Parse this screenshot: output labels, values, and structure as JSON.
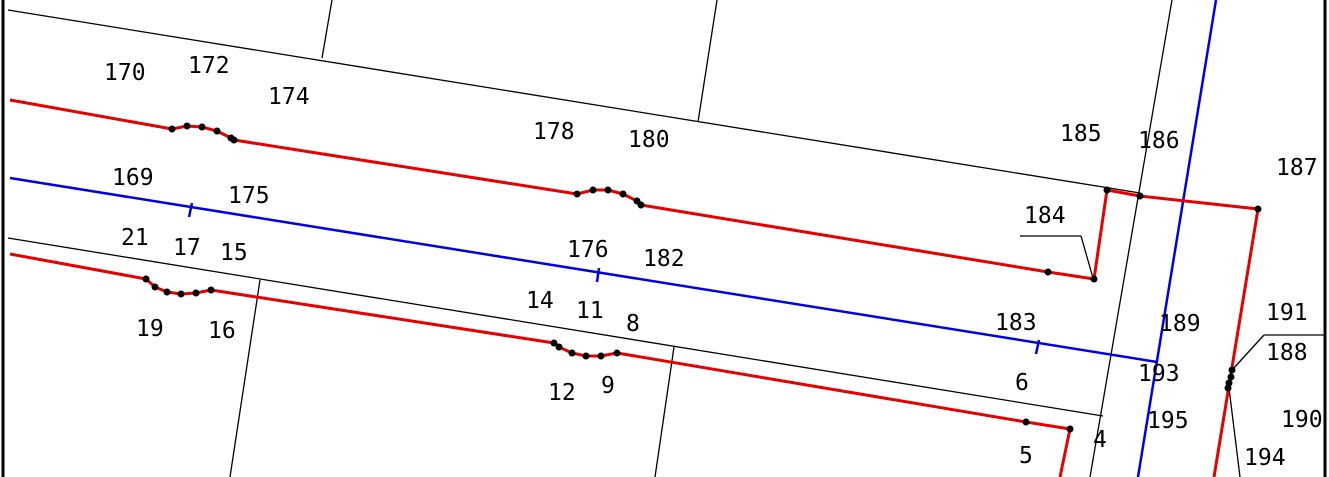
{
  "colors": {
    "background": "#ffffff",
    "parcel_line": "#000000",
    "red_line": "#e60000",
    "blue_line": "#0000e6",
    "frame": "#000000"
  },
  "labels": {
    "p170": "170",
    "p172": "172",
    "p174": "174",
    "p178": "178",
    "p180": "180",
    "p185": "185",
    "p186": "186",
    "p187": "187",
    "p169": "169",
    "p175": "175",
    "p184": "184",
    "p21": "21",
    "p17": "17",
    "p15": "15",
    "p176": "176",
    "p182": "182",
    "p19": "19",
    "p16": "16",
    "p14": "14",
    "p11": "11",
    "p8": "8",
    "p183": "183",
    "p189": "189",
    "p191": "191",
    "p188": "188",
    "p12": "12",
    "p9": "9",
    "p6": "6",
    "p193": "193",
    "p190": "190",
    "p195": "195",
    "p194": "194",
    "p5": "5",
    "p4": "4"
  }
}
